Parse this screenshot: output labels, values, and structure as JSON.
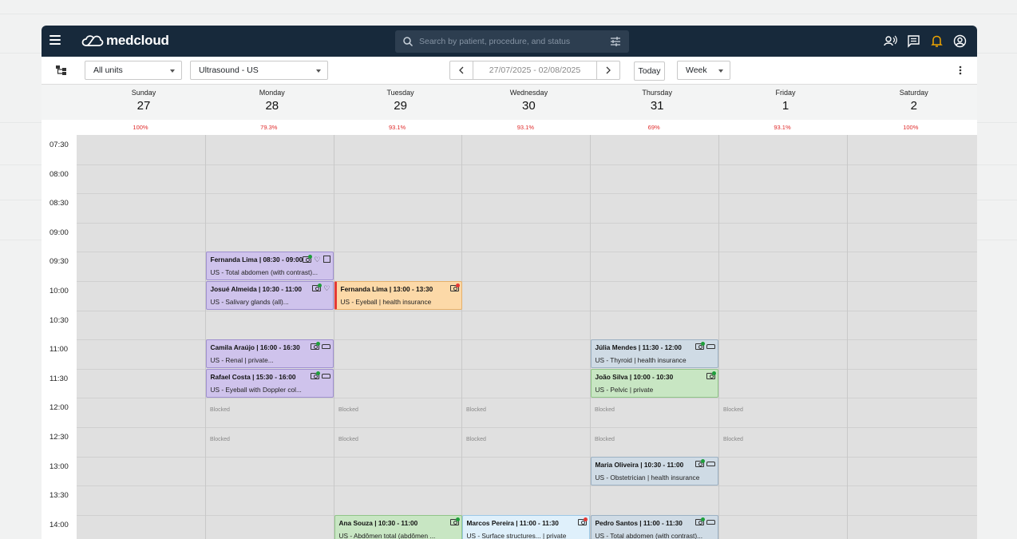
{
  "app": {
    "logo_text": "medcloud",
    "brand_color": "#17293b",
    "alert_color": "#f0a500"
  },
  "search": {
    "placeholder": "Search by patient, procedure, and status"
  },
  "toolbar": {
    "unit_select": "All units",
    "modality_select": "Ultrasound - US",
    "date_range": "27/07/2025 - 02/08/2025",
    "today_label": "Today",
    "view_select": "Week"
  },
  "days": [
    {
      "name": "Sunday",
      "date": "27",
      "occupancy": "100%"
    },
    {
      "name": "Monday",
      "date": "28",
      "occupancy": "79.3%"
    },
    {
      "name": "Tuesday",
      "date": "29",
      "occupancy": "93.1%"
    },
    {
      "name": "Wednesday",
      "date": "30",
      "occupancy": "93.1%"
    },
    {
      "name": "Thursday",
      "date": "31",
      "occupancy": "69%"
    },
    {
      "name": "Friday",
      "date": "1",
      "occupancy": "93.1%"
    },
    {
      "name": "Saturday",
      "date": "2",
      "occupancy": "100%"
    }
  ],
  "times": [
    "07:30",
    "08:00",
    "08:30",
    "09:00",
    "09:30",
    "10:00",
    "10:30",
    "11:00",
    "11:30",
    "12:00",
    "12:30",
    "13:00",
    "13:30",
    "14:00"
  ],
  "blocked_label": "Blocked",
  "appointments": [
    {
      "title": "Fernanda Lima | 08:30 - 09:00",
      "subtitle": "US - Total abdomen (with contrast)...",
      "day": 1,
      "slot": 4,
      "color": "purple",
      "icons": [
        "money",
        "heart",
        "doc"
      ]
    },
    {
      "title": "Josué Almeida | 10:30 - 11:00",
      "subtitle": "US - Salivary glands (all)...",
      "day": 1,
      "slot": 5,
      "color": "purple",
      "icons": [
        "money",
        "heart"
      ]
    },
    {
      "title": "Fernanda Lima | 13:00 - 13:30",
      "subtitle": "US - Eyeball | health insurance",
      "day": 2,
      "slot": 5,
      "color": "orange",
      "icons": [
        "money-red"
      ]
    },
    {
      "title": "Camila Araújo | 16:00 - 16:30",
      "subtitle": "US - Renal | private...",
      "day": 1,
      "slot": 7,
      "color": "purple",
      "icons": [
        "money",
        "car"
      ]
    },
    {
      "title": "Rafael Costa | 15:30 - 16:00",
      "subtitle": "US - Eyeball with Doppler col...",
      "day": 1,
      "slot": 8,
      "color": "purple",
      "icons": [
        "money",
        "car"
      ]
    },
    {
      "title": "Júlia Mendes | 11:30 - 12:00",
      "subtitle": "US - Thyroid | health insurance",
      "day": 4,
      "slot": 7,
      "color": "blue",
      "icons": [
        "money",
        "car"
      ]
    },
    {
      "title": "João Silva | 10:00 - 10:30",
      "subtitle": "US - Pelvic | private",
      "day": 4,
      "slot": 8,
      "color": "green",
      "icons": [
        "money"
      ]
    },
    {
      "title": "Maria Oliveira | 10:30 - 11:00",
      "subtitle": "US - Obstetrician | health insurance",
      "day": 4,
      "slot": 11,
      "color": "blue",
      "icons": [
        "money",
        "car"
      ]
    },
    {
      "title": "Ana Souza | 10:30 - 11:00",
      "subtitle": "US - Abdômen total (abdômen ...",
      "day": 2,
      "slot": 13,
      "color": "green",
      "icons": [
        "money"
      ]
    },
    {
      "title": "Marcos Pereira | 11:00 - 11:30",
      "subtitle": "US - Surface structures... | private",
      "day": 3,
      "slot": 13,
      "color": "lblue",
      "icons": [
        "money-red"
      ]
    },
    {
      "title": "Pedro Santos | 11:00 - 11:30",
      "subtitle": "US - Total abdomen (with contrast)...",
      "day": 4,
      "slot": 13,
      "color": "blue",
      "icons": [
        "money",
        "car"
      ]
    }
  ],
  "blocked": [
    {
      "day": 1,
      "slot": 9
    },
    {
      "day": 2,
      "slot": 9
    },
    {
      "day": 3,
      "slot": 9
    },
    {
      "day": 4,
      "slot": 9
    },
    {
      "day": 5,
      "slot": 9
    },
    {
      "day": 1,
      "slot": 10
    },
    {
      "day": 2,
      "slot": 10
    },
    {
      "day": 3,
      "slot": 10
    },
    {
      "day": 4,
      "slot": 10
    },
    {
      "day": 5,
      "slot": 10
    }
  ]
}
